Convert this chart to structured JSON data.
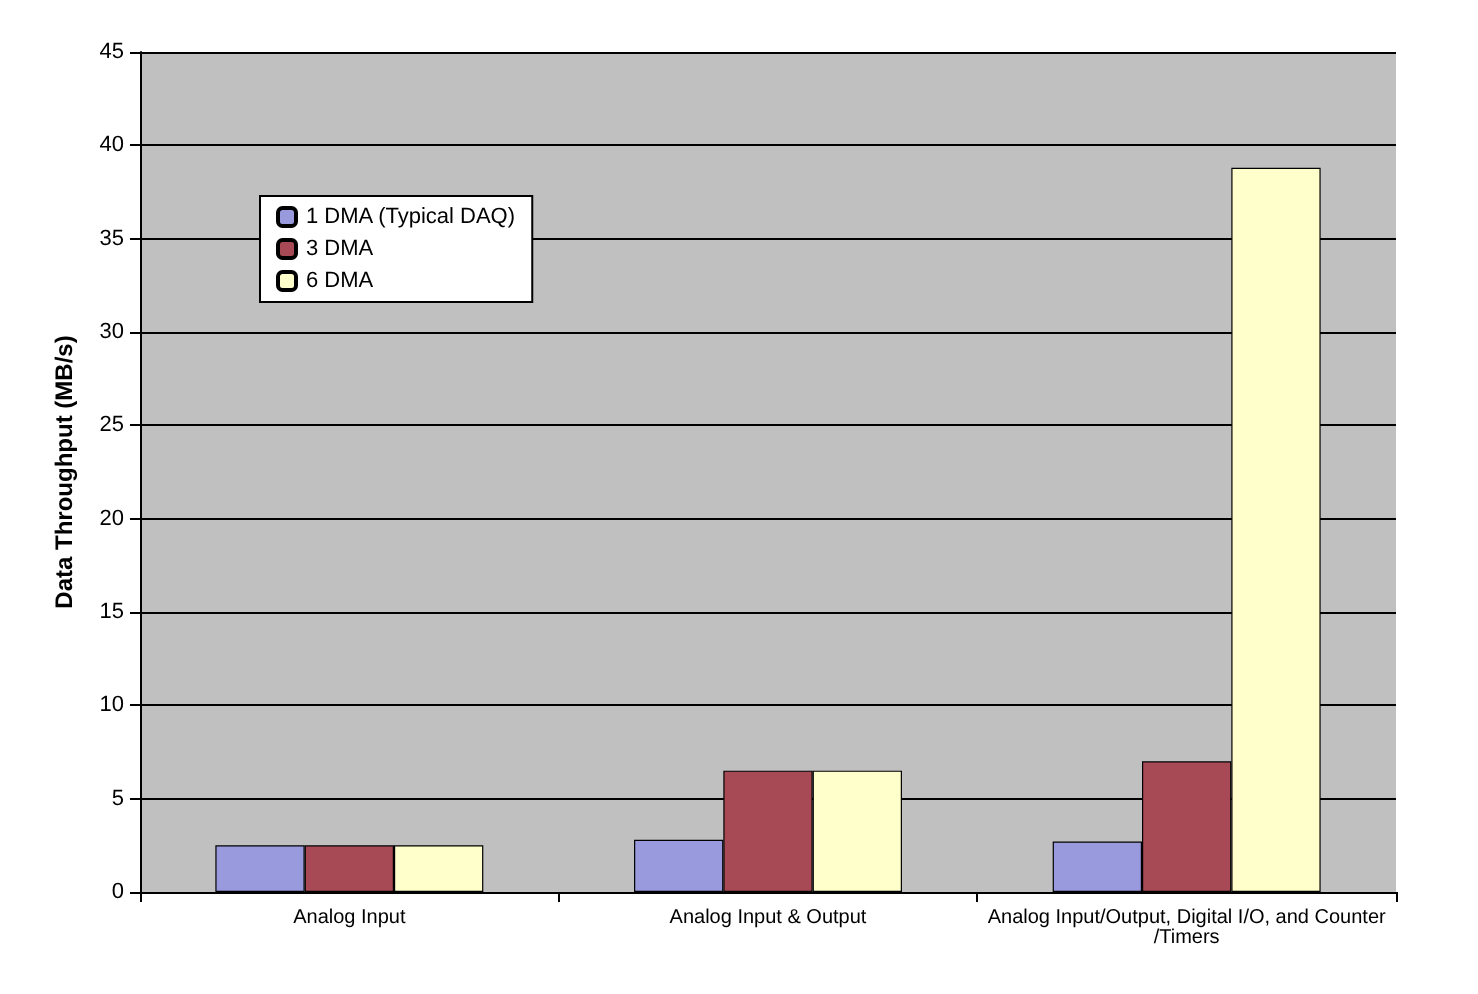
{
  "chart_data": {
    "type": "bar",
    "ylabel": "Data Throughput (MB/s)",
    "categories": [
      "Analog Input",
      "Analog Input & Output",
      "Analog Input/Output, Digital I/O, and Counter/Timers"
    ],
    "series": [
      {
        "name": "1 DMA (Typical DAQ)",
        "color": "#9999dd",
        "values": [
          2.5,
          2.8,
          2.7
        ]
      },
      {
        "name": "3 DMA",
        "color": "#a84a55",
        "values": [
          2.5,
          6.5,
          7.0
        ]
      },
      {
        "name": "6 DMA",
        "color": "#ffffcc",
        "values": [
          2.5,
          6.5,
          38.8
        ]
      }
    ],
    "ylim": [
      0,
      45
    ],
    "yticks": [
      0,
      5,
      10,
      15,
      20,
      25,
      30,
      35,
      40,
      45
    ],
    "grid": "y",
    "legend": "top left"
  }
}
